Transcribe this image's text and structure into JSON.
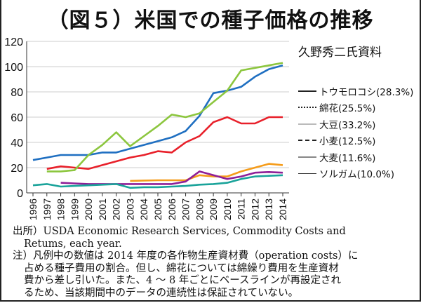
{
  "title": "（図５）米国での種子価格の推移",
  "credit": "久野秀二氏資料",
  "notes": {
    "source_line1": "出所）USDA Economic Research Services, Commodity Costs and",
    "source_line2": "Retums, each year.",
    "note_line1": "注）凡例中の数値は 2014 年度の各作物生産資材費（operation costs）に",
    "note_line2": "占める種子費用の割合。但し、綿花については綿繰り費用を生産資材",
    "note_line3": "費から差し引いた。また、4 ～ 8 年ごとにベースラインが再設定され",
    "note_line4": "るため、当該期間中のデータの連続性は保証されていない。"
  },
  "chart_data": {
    "type": "line",
    "title": "（図５）米国での種子価格の推移",
    "xlabel": "",
    "ylabel": "",
    "ylim": [
      0,
      120
    ],
    "yticks": [
      0,
      20,
      40,
      60,
      80,
      100,
      120
    ],
    "grid": true,
    "legend_position": "right",
    "x": [
      1996,
      1997,
      1998,
      1999,
      2000,
      2001,
      2002,
      2003,
      2004,
      2005,
      2006,
      2007,
      2008,
      2009,
      2010,
      2011,
      2012,
      2013,
      2014
    ],
    "xtick_labels": [
      "1996",
      "1997",
      "1998",
      "1999",
      "2000",
      "2001",
      "2002",
      "2003",
      "2004",
      "2005",
      "2006",
      "2007",
      "2008",
      "2009",
      "2010",
      "2011",
      "2012",
      "2013",
      "2014"
    ],
    "series": [
      {
        "name": "トウモロコシ(28.3%)",
        "color": "#1f6fc1",
        "legend_style": "solid-black",
        "values": [
          26,
          28,
          30,
          30,
          30,
          32,
          32,
          35,
          38,
          41,
          44,
          49,
          61,
          79,
          81,
          84,
          92,
          98,
          101
        ]
      },
      {
        "name": "綿花(25.5%)",
        "color": "#e8202a",
        "legend_style": "dotted",
        "values": [
          null,
          19,
          21,
          20,
          19,
          22,
          25,
          28,
          30,
          33,
          32,
          40,
          45,
          56,
          60,
          55,
          55,
          60,
          60
        ]
      },
      {
        "name": "大豆(33.2%)",
        "color": "#8cc63e",
        "legend_style": "solid-lightgray",
        "values": [
          null,
          17,
          17,
          18,
          30,
          38,
          48,
          37,
          45,
          53,
          62,
          60,
          63,
          72,
          81,
          97,
          99,
          101,
          103
        ]
      },
      {
        "name": "小麦(12.5%)",
        "color": "#f59c1a",
        "legend_style": "dashed",
        "values": [
          null,
          null,
          null,
          null,
          null,
          null,
          null,
          9.5,
          9.8,
          10,
          10,
          10,
          14,
          13,
          13,
          17,
          20,
          23,
          22
        ]
      },
      {
        "name": "大麦(11.6%)",
        "color": "#8e1f97",
        "legend_style": "solid-gray",
        "values": [
          null,
          null,
          8,
          7.5,
          7,
          7,
          7,
          7,
          7,
          7,
          7,
          9,
          17,
          14,
          11,
          13,
          16,
          16.5,
          16
        ]
      },
      {
        "name": "ソルガム(10.0%)",
        "color": "#1aa39a",
        "legend_style": "thin-black",
        "values": [
          6,
          7,
          5,
          5.5,
          6,
          6.5,
          7,
          4,
          4.5,
          4.5,
          5,
          5.5,
          6.5,
          7,
          8,
          11,
          13,
          13.5,
          14
        ]
      }
    ]
  }
}
